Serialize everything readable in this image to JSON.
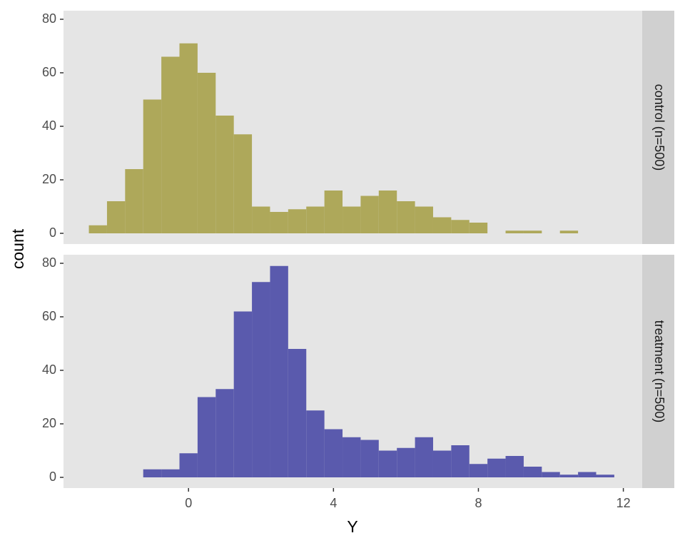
{
  "chart_data": {
    "type": "histogram",
    "x_label": "Y",
    "y_label": "count",
    "xlim": [
      -3.45,
      12.52
    ],
    "ylim": [
      -4,
      83.2
    ],
    "xticks": [
      0,
      4,
      8,
      12
    ],
    "yticks": [
      0,
      20,
      40,
      60,
      80
    ],
    "grid": false,
    "facets": [
      {
        "label": "control (n=500)",
        "color": "#aea85a",
        "bins": [
          -2.75,
          -2.25,
          -1.75,
          -1.25,
          -0.75,
          -0.25,
          0.25,
          0.75,
          1.25,
          1.75,
          2.25,
          2.75,
          3.25,
          3.75,
          4.25,
          4.75,
          5.25,
          5.75,
          6.25,
          6.75,
          7.25,
          7.75,
          8.25,
          8.75,
          9.25,
          9.75,
          10.25,
          10.75
        ],
        "values": [
          3,
          12,
          24,
          50,
          66,
          71,
          60,
          44,
          37,
          10,
          8,
          9,
          10,
          16,
          10,
          14,
          16,
          12,
          10,
          6,
          5,
          4,
          0,
          1,
          1,
          0,
          1
        ]
      },
      {
        "label": "treatment (n=500)",
        "color": "#5a5aad",
        "bins": [
          -1.25,
          -0.75,
          -0.25,
          0.25,
          0.75,
          1.25,
          1.75,
          2.25,
          2.75,
          3.25,
          3.75,
          4.25,
          4.75,
          5.25,
          5.75,
          6.25,
          6.75,
          7.25,
          7.75,
          8.25,
          8.75,
          9.25,
          9.75,
          10.25,
          10.75,
          11.25,
          11.75
        ],
        "values": [
          3,
          3,
          9,
          30,
          33,
          62,
          73,
          79,
          48,
          25,
          18,
          15,
          14,
          10,
          11,
          15,
          10,
          12,
          5,
          7,
          8,
          4,
          2,
          1,
          2,
          1
        ]
      }
    ]
  }
}
